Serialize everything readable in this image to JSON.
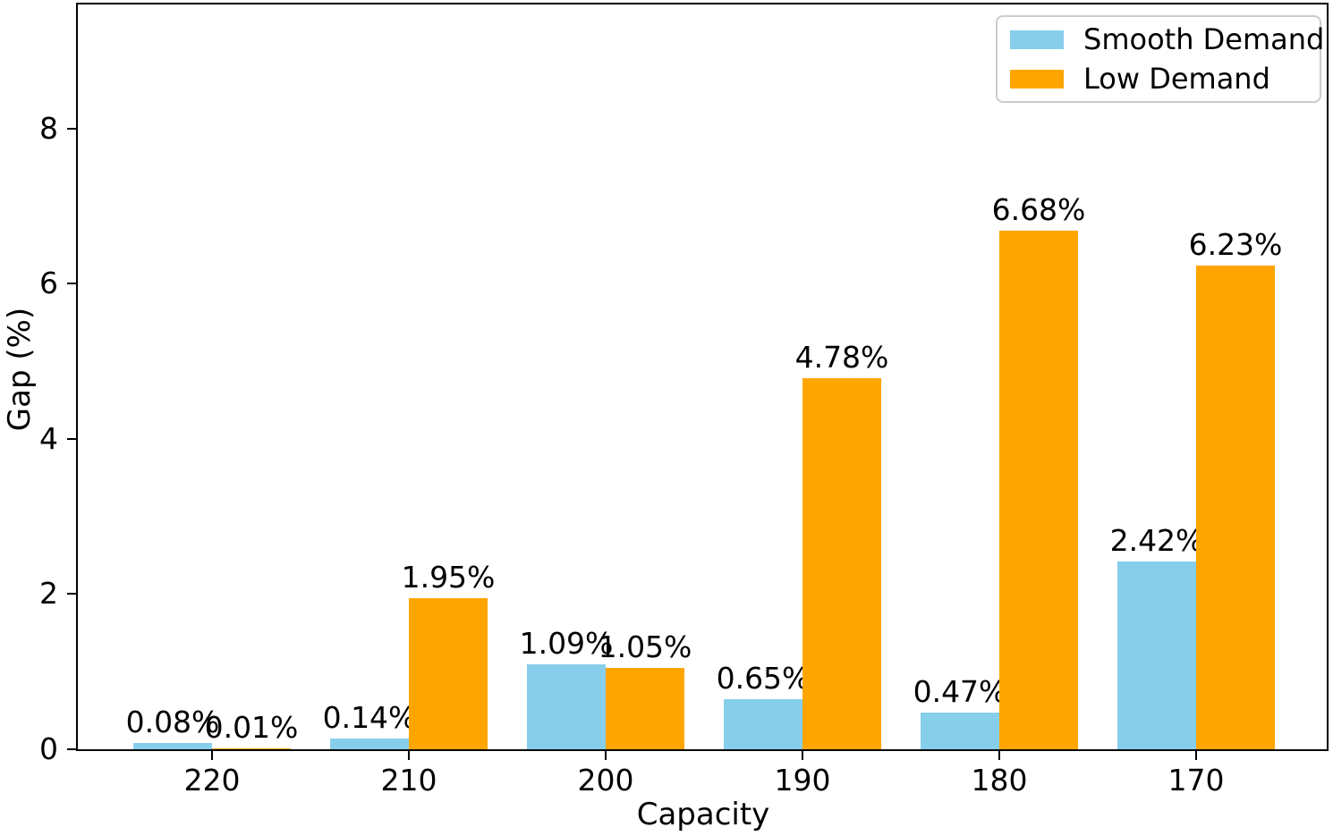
{
  "chart_data": {
    "type": "bar",
    "title": "",
    "xlabel": "Capacity",
    "ylabel": "Gap (%)",
    "categories": [
      "220",
      "210",
      "200",
      "190",
      "180",
      "170"
    ],
    "series": [
      {
        "name": "Smooth Demand",
        "color": "#87ceeb",
        "values": [
          0.08,
          0.14,
          1.09,
          0.65,
          0.47,
          2.42
        ],
        "labels": [
          "0.08%",
          "0.14%",
          "1.09%",
          "0.65%",
          "0.47%",
          "2.42%"
        ]
      },
      {
        "name": "Low Demand",
        "color": "#ffa500",
        "values": [
          0.01,
          1.95,
          1.05,
          4.78,
          6.68,
          6.23
        ],
        "labels": [
          "0.01%",
          "1.95%",
          "1.05%",
          "4.78%",
          "6.68%",
          "6.23%"
        ]
      }
    ],
    "yticks": [
      "0",
      "2",
      "4",
      "6",
      "8"
    ],
    "ylim": [
      0,
      9.6
    ],
    "grid": false,
    "legend_position": "upper right"
  },
  "colors": {
    "axis": "#000000",
    "text": "#000000",
    "legend_border": "#cccccc",
    "background": "#ffffff"
  }
}
